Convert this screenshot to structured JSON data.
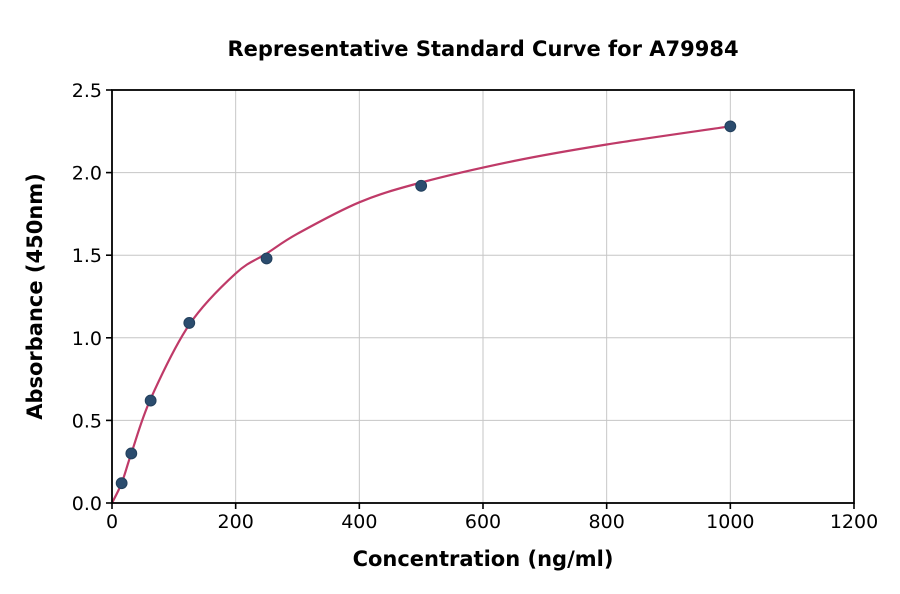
{
  "figure": {
    "background": "#ffffff"
  },
  "chart_data": {
    "type": "scatter",
    "title": "Representative Standard Curve for A79984",
    "xlabel": "Concentration (ng/ml)",
    "ylabel": "Absorbance (450nm)",
    "xlim": [
      0,
      1200
    ],
    "ylim": [
      0,
      2.5
    ],
    "xticks": [
      0,
      200,
      400,
      600,
      800,
      1000,
      1200
    ],
    "yticks": [
      0.0,
      0.5,
      1.0,
      1.5,
      2.0,
      2.5
    ],
    "grid": true,
    "legend_position": "none",
    "points": [
      {
        "x": 15.6,
        "y": 0.12
      },
      {
        "x": 31.25,
        "y": 0.3
      },
      {
        "x": 62.5,
        "y": 0.62
      },
      {
        "x": 125,
        "y": 1.09
      },
      {
        "x": 250,
        "y": 1.48
      },
      {
        "x": 500,
        "y": 1.92
      },
      {
        "x": 1000,
        "y": 2.28
      }
    ],
    "fit_curve": [
      [
        0,
        0.0
      ],
      [
        15.6,
        0.12
      ],
      [
        31.25,
        0.3
      ],
      [
        62.5,
        0.63
      ],
      [
        125,
        1.08
      ],
      [
        200,
        1.39
      ],
      [
        250,
        1.51
      ],
      [
        300,
        1.63
      ],
      [
        400,
        1.82
      ],
      [
        500,
        1.94
      ],
      [
        650,
        2.07
      ],
      [
        800,
        2.17
      ],
      [
        1000,
        2.28
      ]
    ],
    "colors": {
      "marker": "#2b4c6e",
      "marker_edge": "#223f5c",
      "curve": "#bf3a68",
      "grid": "#c6c6c6",
      "axis": "#000000",
      "text": "#000000"
    }
  }
}
